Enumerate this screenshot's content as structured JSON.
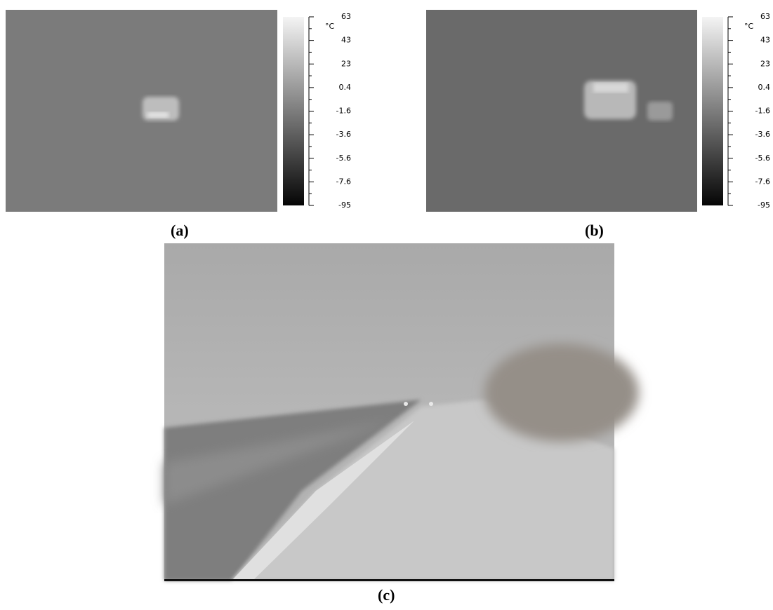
{
  "panels": [
    {
      "label": "(a)",
      "colorbar": {
        "unit": "°C",
        "ticks": [
          "63",
          "43",
          "23",
          "0.4",
          "-1.6",
          "-3.6",
          "-5.6",
          "-7.6",
          "-95"
        ]
      }
    },
    {
      "label": "(b)",
      "colorbar": {
        "unit": "°C",
        "ticks": [
          "63",
          "43",
          "23",
          "0.4",
          "-1.6",
          "-3.6",
          "-5.6",
          "-7.6",
          "-95"
        ]
      }
    },
    {
      "label": "(c)"
    }
  ]
}
